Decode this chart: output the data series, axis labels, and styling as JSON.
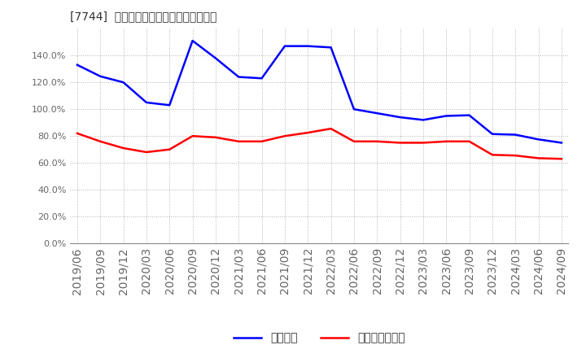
{
  "title": "[7744]  固定比率、固定長期適合率の推移",
  "ylim": [
    0.0,
    1.6
  ],
  "yticks": [
    0.0,
    0.2,
    0.4,
    0.6,
    0.8,
    1.0,
    1.2,
    1.4
  ],
  "ytick_labels": [
    "0.0%",
    "20.0%",
    "40.0%",
    "60.0%",
    "80.0%",
    "100.0%",
    "120.0%",
    "140.0%"
  ],
  "legend1": "固定比率",
  "legend2": "固定長期適合率",
  "color1": "#0000FF",
  "color2": "#FF0000",
  "x_labels": [
    "2019/06",
    "2019/09",
    "2019/12",
    "2020/03",
    "2020/06",
    "2020/09",
    "2020/12",
    "2021/03",
    "2021/06",
    "2021/09",
    "2021/12",
    "2022/03",
    "2022/06",
    "2022/09",
    "2022/12",
    "2023/03",
    "2023/06",
    "2023/09",
    "2023/12",
    "2024/03",
    "2024/06",
    "2024/09"
  ],
  "series1": [
    1.33,
    1.245,
    1.2,
    1.05,
    1.03,
    1.51,
    1.38,
    1.24,
    1.23,
    1.47,
    1.47,
    1.46,
    1.0,
    0.97,
    0.94,
    0.92,
    0.95,
    0.955,
    0.815,
    0.81,
    0.775,
    0.75
  ],
  "series2": [
    0.82,
    0.76,
    0.71,
    0.68,
    0.7,
    0.8,
    0.79,
    0.76,
    0.76,
    0.8,
    0.825,
    0.855,
    0.76,
    0.76,
    0.75,
    0.75,
    0.76,
    0.76,
    0.66,
    0.655,
    0.635,
    0.63
  ],
  "background_color": "#ffffff",
  "plot_bg_color": "#ffffff",
  "grid_color": "#aaaaaa",
  "title_fontsize": 12,
  "tick_fontsize": 8,
  "legend_fontsize": 10
}
